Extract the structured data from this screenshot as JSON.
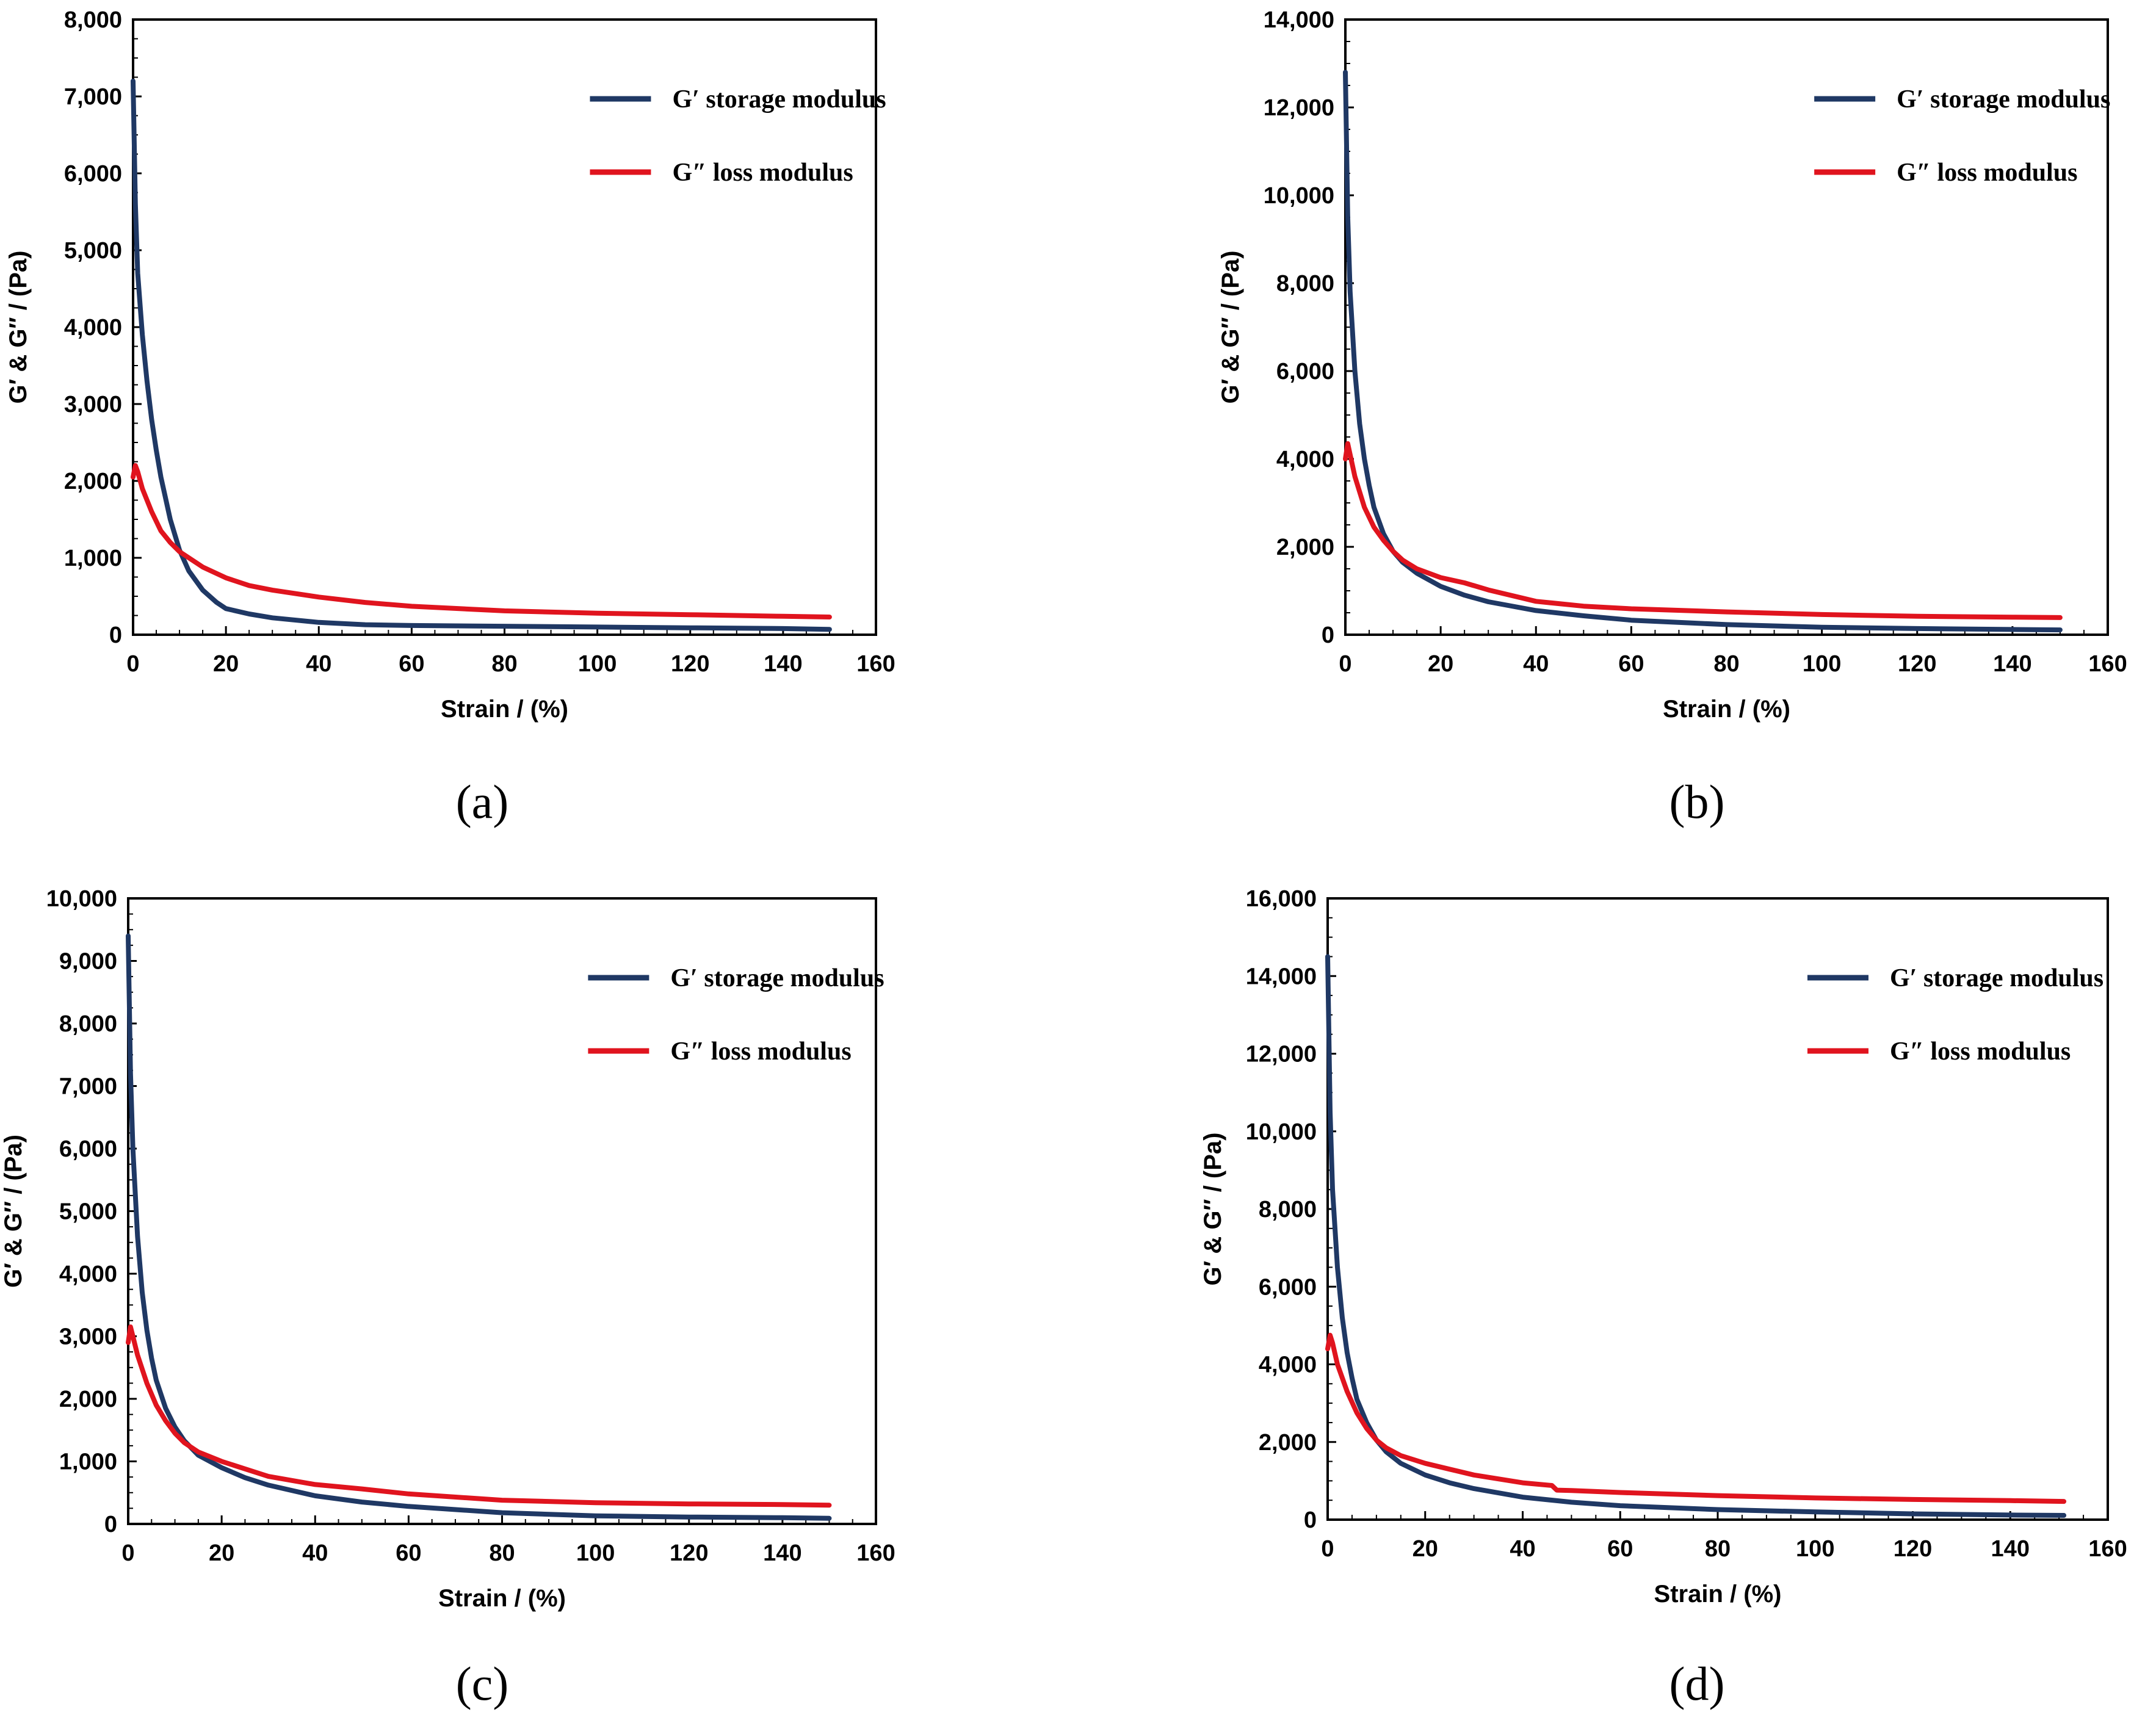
{
  "figure": {
    "panel_labels": [
      "(a)",
      "(b)",
      "(c)",
      "(d)"
    ],
    "colors": {
      "storage": "#1f3864",
      "loss": "#e0141e",
      "axis": "#000000",
      "background": "#ffffff"
    }
  },
  "chart_data": [
    {
      "type": "line",
      "panel": "(a)",
      "xlabel": "Strain / (%)",
      "ylabel": "G′ & G″ / (Pa)",
      "xlim": [
        0,
        160
      ],
      "ylim": [
        0,
        8000
      ],
      "xticks": [
        "0",
        "20",
        "40",
        "60",
        "80",
        "100",
        "120",
        "140",
        "160"
      ],
      "yticks": [
        "0",
        "1,000",
        "2,000",
        "3,000",
        "4,000",
        "5,000",
        "6,000",
        "7,000",
        "8,000"
      ],
      "legend": "top-right",
      "series": [
        {
          "name": "G′ storage modulus",
          "color": "#1f3864",
          "x": [
            0,
            0.5,
            1,
            2,
            3,
            4,
            5,
            6,
            8,
            10,
            12,
            15,
            18,
            20,
            25,
            30,
            40,
            50,
            60,
            80,
            100,
            120,
            140,
            150
          ],
          "y": [
            7200,
            5600,
            4700,
            3900,
            3300,
            2800,
            2400,
            2050,
            1500,
            1100,
            830,
            580,
            420,
            340,
            270,
            220,
            160,
            130,
            120,
            110,
            100,
            90,
            80,
            70
          ]
        },
        {
          "name": "G″ loss modulus",
          "color": "#e0141e",
          "x": [
            0,
            0.5,
            1,
            2,
            4,
            6,
            8,
            10,
            15,
            20,
            25,
            30,
            40,
            50,
            60,
            80,
            100,
            120,
            140,
            150
          ],
          "y": [
            2050,
            2200,
            2120,
            1900,
            1600,
            1350,
            1200,
            1080,
            880,
            740,
            640,
            580,
            490,
            420,
            370,
            310,
            280,
            260,
            240,
            230
          ]
        }
      ]
    },
    {
      "type": "line",
      "panel": "(b)",
      "xlabel": "Strain / (%)",
      "ylabel": "G′ & G″ / (Pa)",
      "xlim": [
        0,
        160
      ],
      "ylim": [
        0,
        14000
      ],
      "xticks": [
        "0",
        "20",
        "40",
        "60",
        "80",
        "100",
        "120",
        "140",
        "160"
      ],
      "yticks": [
        "0",
        "2,000",
        "4,000",
        "6,000",
        "8,000",
        "10,000",
        "12,000",
        "14,000"
      ],
      "legend": "top-right",
      "series": [
        {
          "name": "G′ storage modulus",
          "color": "#1f3864",
          "x": [
            0,
            0.5,
            1,
            2,
            3,
            4,
            5,
            6,
            8,
            10,
            12,
            15,
            20,
            25,
            30,
            40,
            50,
            60,
            80,
            100,
            120,
            140,
            150
          ],
          "y": [
            12800,
            9500,
            7800,
            6000,
            4800,
            4000,
            3400,
            2900,
            2300,
            1900,
            1650,
            1400,
            1100,
            900,
            750,
            550,
            430,
            330,
            230,
            170,
            140,
            120,
            110
          ]
        },
        {
          "name": "G″ loss modulus",
          "color": "#e0141e",
          "x": [
            0,
            0.5,
            1,
            2,
            4,
            6,
            8,
            10,
            12,
            15,
            20,
            25,
            30,
            40,
            50,
            60,
            80,
            100,
            120,
            140,
            150
          ],
          "y": [
            4000,
            4350,
            4100,
            3600,
            2900,
            2450,
            2150,
            1900,
            1700,
            1500,
            1300,
            1180,
            1020,
            760,
            650,
            590,
            520,
            460,
            420,
            400,
            390
          ]
        }
      ]
    },
    {
      "type": "line",
      "panel": "(c)",
      "xlabel": "Strain / (%)",
      "ylabel": "G′ & G″ / (Pa)",
      "xlim": [
        0,
        160
      ],
      "ylim": [
        0,
        10000
      ],
      "xticks": [
        "0",
        "20",
        "40",
        "60",
        "80",
        "100",
        "120",
        "140",
        "160"
      ],
      "yticks": [
        "0",
        "1,000",
        "2,000",
        "3,000",
        "4,000",
        "5,000",
        "6,000",
        "7,000",
        "8,000",
        "9,000",
        "10,000"
      ],
      "legend": "top-right",
      "series": [
        {
          "name": "G′ storage modulus",
          "color": "#1f3864",
          "x": [
            0,
            0.5,
            1,
            2,
            3,
            4,
            5,
            6,
            8,
            10,
            12,
            15,
            20,
            25,
            30,
            40,
            50,
            60,
            80,
            100,
            120,
            140,
            150
          ],
          "y": [
            9400,
            7200,
            6000,
            4600,
            3700,
            3100,
            2650,
            2300,
            1850,
            1550,
            1330,
            1100,
            900,
            740,
            620,
            450,
            350,
            280,
            180,
            130,
            110,
            100,
            90
          ]
        },
        {
          "name": "G″ loss modulus",
          "color": "#e0141e",
          "x": [
            0,
            0.5,
            1,
            2,
            4,
            6,
            8,
            10,
            12,
            15,
            20,
            25,
            30,
            40,
            50,
            60,
            80,
            100,
            120,
            140,
            150
          ],
          "y": [
            2900,
            3150,
            3000,
            2700,
            2250,
            1900,
            1650,
            1450,
            1300,
            1150,
            1000,
            880,
            760,
            630,
            560,
            480,
            380,
            340,
            320,
            310,
            300
          ]
        }
      ]
    },
    {
      "type": "line",
      "panel": "(d)",
      "xlabel": "Strain / (%)",
      "ylabel": "G′ & G″ / (Pa)",
      "xlim": [
        0,
        160
      ],
      "ylim": [
        0,
        16000
      ],
      "xticks": [
        "0",
        "20",
        "40",
        "60",
        "80",
        "100",
        "120",
        "140",
        "160"
      ],
      "yticks": [
        "0",
        "2,000",
        "4,000",
        "6,000",
        "8,000",
        "10,000",
        "12,000",
        "14,000",
        "16,000"
      ],
      "legend": "top-right",
      "series": [
        {
          "name": "G′ storage modulus",
          "color": "#1f3864",
          "x": [
            0,
            0.5,
            1,
            2,
            3,
            4,
            5,
            6,
            8,
            10,
            12,
            15,
            20,
            25,
            30,
            40,
            50,
            60,
            80,
            100,
            120,
            140,
            151
          ],
          "y": [
            14500,
            10500,
            8500,
            6500,
            5200,
            4300,
            3650,
            3100,
            2500,
            2050,
            1750,
            1450,
            1150,
            950,
            800,
            580,
            450,
            360,
            260,
            200,
            150,
            120,
            110
          ]
        },
        {
          "name": "G″ loss modulus",
          "color": "#e0141e",
          "x": [
            0,
            0.5,
            1,
            2,
            4,
            6,
            8,
            10,
            12,
            15,
            20,
            25,
            30,
            40,
            46,
            47,
            50,
            60,
            80,
            100,
            120,
            140,
            151
          ],
          "y": [
            4400,
            4750,
            4550,
            4000,
            3300,
            2750,
            2350,
            2050,
            1850,
            1650,
            1450,
            1300,
            1150,
            950,
            880,
            760,
            750,
            700,
            620,
            560,
            520,
            490,
            470
          ]
        }
      ]
    }
  ]
}
